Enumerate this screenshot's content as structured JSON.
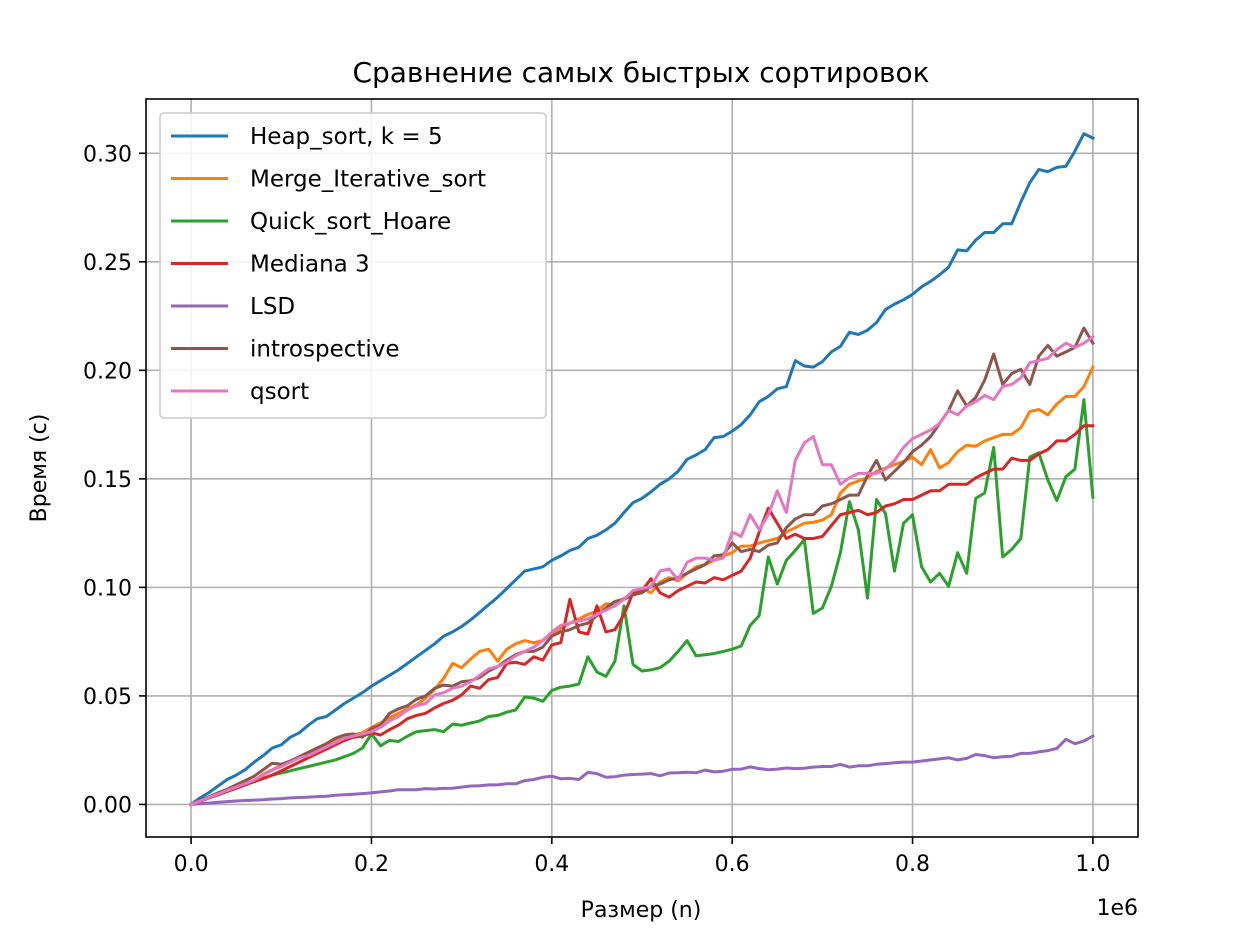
{
  "chart_data": {
    "type": "line",
    "title": "Сравнение самых быстрых сортировок",
    "xlabel": "Размер (n)",
    "ylabel": "Время (с)",
    "x_offset_label": "1e6",
    "xlim": [
      -0.05,
      1.05
    ],
    "ylim": [
      -0.015,
      0.325
    ],
    "x_ticks": [
      0.0,
      0.2,
      0.4,
      0.6,
      0.8,
      1.0
    ],
    "x_tick_labels": [
      "0.0",
      "0.2",
      "0.4",
      "0.6",
      "0.8",
      "1.0"
    ],
    "y_ticks": [
      0.0,
      0.05,
      0.1,
      0.15,
      0.2,
      0.25,
      0.3
    ],
    "y_tick_labels": [
      "0.00",
      "0.05",
      "0.10",
      "0.15",
      "0.20",
      "0.25",
      "0.30"
    ],
    "grid": true,
    "legend_position": "upper-left",
    "x": [
      0.0,
      0.01,
      0.02,
      0.03,
      0.04,
      0.05,
      0.06,
      0.07,
      0.08,
      0.09,
      0.1,
      0.11,
      0.12,
      0.13,
      0.14,
      0.15,
      0.16,
      0.17,
      0.18,
      0.19,
      0.2,
      0.21,
      0.22,
      0.23,
      0.24,
      0.25,
      0.26,
      0.27,
      0.28,
      0.29,
      0.3,
      0.31,
      0.32,
      0.33,
      0.34,
      0.35,
      0.36,
      0.37,
      0.38,
      0.39,
      0.4,
      0.41,
      0.42,
      0.43,
      0.44,
      0.45,
      0.46,
      0.47,
      0.48,
      0.49,
      0.5,
      0.51,
      0.52,
      0.53,
      0.54,
      0.55,
      0.56,
      0.57,
      0.58,
      0.59,
      0.6,
      0.61,
      0.62,
      0.63,
      0.64,
      0.65,
      0.66,
      0.67,
      0.68,
      0.69,
      0.7,
      0.71,
      0.72,
      0.73,
      0.74,
      0.75,
      0.76,
      0.77,
      0.78,
      0.79,
      0.8,
      0.81,
      0.82,
      0.83,
      0.84,
      0.85,
      0.86,
      0.87,
      0.88,
      0.89,
      0.9,
      0.91,
      0.92,
      0.93,
      0.94,
      0.95,
      0.96,
      0.97,
      0.98,
      0.99,
      1.0
    ],
    "series": [
      {
        "name": "Heap_sort, k = 5",
        "color": "#1f77b4",
        "values": [
          0.0,
          0.003,
          0.0055,
          0.0085,
          0.0115,
          0.0135,
          0.016,
          0.0195,
          0.0225,
          0.026,
          0.0275,
          0.031,
          0.033,
          0.0365,
          0.0395,
          0.0405,
          0.0435,
          0.0465,
          0.049,
          0.0515,
          0.0545,
          0.057,
          0.0595,
          0.062,
          0.065,
          0.068,
          0.071,
          0.074,
          0.0775,
          0.0795,
          0.082,
          0.085,
          0.0885,
          0.092,
          0.0955,
          0.0995,
          0.1035,
          0.1075,
          0.1085,
          0.1095,
          0.1125,
          0.1145,
          0.117,
          0.1185,
          0.1225,
          0.124,
          0.1265,
          0.1295,
          0.1345,
          0.139,
          0.141,
          0.144,
          0.1475,
          0.15,
          0.1535,
          0.159,
          0.161,
          0.1635,
          0.169,
          0.1695,
          0.172,
          0.175,
          0.1795,
          0.1855,
          0.188,
          0.1915,
          0.1925,
          0.2045,
          0.202,
          0.2015,
          0.204,
          0.2085,
          0.211,
          0.2175,
          0.2165,
          0.2185,
          0.222,
          0.228,
          0.2305,
          0.2325,
          0.235,
          0.2385,
          0.241,
          0.244,
          0.2475,
          0.2555,
          0.255,
          0.26,
          0.2635,
          0.2635,
          0.2675,
          0.2675,
          0.2775,
          0.2865,
          0.2925,
          0.2915,
          0.2935,
          0.294,
          0.301,
          0.309,
          0.307
        ]
      },
      {
        "name": "Merge_Iterative_sort",
        "color": "#ff7f0e",
        "values": [
          0.0,
          0.0015,
          0.003,
          0.0045,
          0.006,
          0.0075,
          0.009,
          0.011,
          0.014,
          0.016,
          0.018,
          0.02,
          0.022,
          0.024,
          0.026,
          0.028,
          0.03,
          0.031,
          0.032,
          0.033,
          0.0355,
          0.0375,
          0.04,
          0.042,
          0.044,
          0.046,
          0.049,
          0.053,
          0.058,
          0.065,
          0.063,
          0.067,
          0.0705,
          0.0715,
          0.066,
          0.0715,
          0.074,
          0.0755,
          0.0745,
          0.0755,
          0.0785,
          0.081,
          0.0835,
          0.0855,
          0.0875,
          0.089,
          0.0925,
          0.0915,
          0.095,
          0.097,
          0.0995,
          0.0975,
          0.1025,
          0.1045,
          0.103,
          0.1065,
          0.1095,
          0.1105,
          0.1125,
          0.1145,
          0.116,
          0.119,
          0.119,
          0.1205,
          0.1215,
          0.1225,
          0.1255,
          0.1275,
          0.1295,
          0.13,
          0.131,
          0.1335,
          0.1435,
          0.1475,
          0.149,
          0.1505,
          0.1535,
          0.155,
          0.1565,
          0.158,
          0.16,
          0.1565,
          0.1635,
          0.155,
          0.1575,
          0.1625,
          0.1655,
          0.165,
          0.1675,
          0.169,
          0.1705,
          0.1705,
          0.1735,
          0.181,
          0.182,
          0.1795,
          0.1845,
          0.188,
          0.188,
          0.1925,
          0.2015
        ]
      },
      {
        "name": "Quick_sort_Hoare",
        "color": "#2ca02c",
        "values": [
          0.0,
          0.0015,
          0.003,
          0.0045,
          0.006,
          0.0075,
          0.009,
          0.0105,
          0.012,
          0.0135,
          0.0145,
          0.0155,
          0.0165,
          0.0175,
          0.0185,
          0.0195,
          0.0205,
          0.022,
          0.0235,
          0.026,
          0.0325,
          0.027,
          0.0295,
          0.029,
          0.0315,
          0.0335,
          0.034,
          0.0345,
          0.0335,
          0.037,
          0.0365,
          0.0375,
          0.0385,
          0.0405,
          0.041,
          0.0425,
          0.0435,
          0.0495,
          0.049,
          0.0475,
          0.0525,
          0.054,
          0.0545,
          0.0555,
          0.068,
          0.061,
          0.059,
          0.066,
          0.0915,
          0.0645,
          0.0615,
          0.062,
          0.063,
          0.066,
          0.0705,
          0.0755,
          0.0685,
          0.069,
          0.0695,
          0.0705,
          0.0715,
          0.073,
          0.0825,
          0.087,
          0.114,
          0.1015,
          0.1125,
          0.117,
          0.122,
          0.088,
          0.0905,
          0.1005,
          0.116,
          0.1395,
          0.1265,
          0.095,
          0.1405,
          0.134,
          0.1075,
          0.1295,
          0.1335,
          0.1095,
          0.1025,
          0.1065,
          0.1005,
          0.116,
          0.1065,
          0.141,
          0.1435,
          0.1645,
          0.114,
          0.1175,
          0.1225,
          0.16,
          0.162,
          0.1495,
          0.14,
          0.151,
          0.1545,
          0.1865,
          0.1415
        ]
      },
      {
        "name": "Mediana 3",
        "color": "#d62728",
        "values": [
          0.0,
          0.0015,
          0.003,
          0.0045,
          0.006,
          0.0075,
          0.009,
          0.0105,
          0.012,
          0.0135,
          0.0155,
          0.0175,
          0.0195,
          0.0215,
          0.0235,
          0.0255,
          0.0275,
          0.0295,
          0.031,
          0.0315,
          0.033,
          0.032,
          0.0345,
          0.0365,
          0.0395,
          0.041,
          0.042,
          0.0445,
          0.0465,
          0.048,
          0.0505,
          0.0545,
          0.0535,
          0.0575,
          0.0585,
          0.065,
          0.0655,
          0.0645,
          0.068,
          0.0665,
          0.0735,
          0.0745,
          0.0945,
          0.0795,
          0.0785,
          0.0915,
          0.0795,
          0.0805,
          0.0875,
          0.0975,
          0.0985,
          0.104,
          0.0975,
          0.0955,
          0.0985,
          0.1005,
          0.1025,
          0.102,
          0.1045,
          0.1035,
          0.1055,
          0.1075,
          0.1135,
          0.1255,
          0.1365,
          0.1295,
          0.1225,
          0.1245,
          0.1225,
          0.1225,
          0.1235,
          0.1285,
          0.1335,
          0.1345,
          0.1355,
          0.1335,
          0.1345,
          0.1375,
          0.1385,
          0.1405,
          0.1405,
          0.1425,
          0.1445,
          0.1445,
          0.1475,
          0.1475,
          0.1475,
          0.1505,
          0.1525,
          0.1545,
          0.1545,
          0.1595,
          0.1585,
          0.1585,
          0.1615,
          0.1635,
          0.1675,
          0.1675,
          0.1705,
          0.1745,
          0.1745
        ]
      },
      {
        "name": "LSD",
        "color": "#9467bd",
        "values": [
          0.0,
          0.0003,
          0.0006,
          0.001,
          0.0013,
          0.0016,
          0.0018,
          0.002,
          0.0022,
          0.0025,
          0.0027,
          0.003,
          0.0032,
          0.0034,
          0.0036,
          0.0038,
          0.0042,
          0.0045,
          0.0047,
          0.005,
          0.0053,
          0.0058,
          0.0062,
          0.0068,
          0.0068,
          0.0068,
          0.0073,
          0.0071,
          0.0074,
          0.0075,
          0.008,
          0.0085,
          0.0086,
          0.009,
          0.009,
          0.0095,
          0.0095,
          0.011,
          0.0115,
          0.0125,
          0.013,
          0.0118,
          0.012,
          0.0115,
          0.0148,
          0.0142,
          0.0125,
          0.0128,
          0.0135,
          0.0138,
          0.014,
          0.0142,
          0.0132,
          0.0145,
          0.0146,
          0.0148,
          0.0146,
          0.0158,
          0.015,
          0.0153,
          0.0162,
          0.0163,
          0.0173,
          0.0165,
          0.016,
          0.0163,
          0.0168,
          0.0165,
          0.0167,
          0.0172,
          0.0175,
          0.0175,
          0.0185,
          0.0172,
          0.0178,
          0.0178,
          0.0185,
          0.0188,
          0.0192,
          0.0195,
          0.0195,
          0.02,
          0.0205,
          0.021,
          0.0215,
          0.0205,
          0.0212,
          0.023,
          0.0225,
          0.0215,
          0.022,
          0.0222,
          0.0235,
          0.0235,
          0.0242,
          0.0248,
          0.0258,
          0.03,
          0.028,
          0.0292,
          0.0315
        ]
      },
      {
        "name": "introspective",
        "color": "#8c564b",
        "values": [
          0.0,
          0.0018,
          0.0035,
          0.0053,
          0.007,
          0.009,
          0.011,
          0.013,
          0.016,
          0.019,
          0.0185,
          0.02,
          0.022,
          0.024,
          0.026,
          0.028,
          0.0305,
          0.032,
          0.0325,
          0.031,
          0.035,
          0.0365,
          0.042,
          0.044,
          0.0455,
          0.0485,
          0.05,
          0.0535,
          0.055,
          0.0545,
          0.0565,
          0.057,
          0.0585,
          0.0615,
          0.0635,
          0.0665,
          0.069,
          0.0705,
          0.0705,
          0.0725,
          0.0775,
          0.0795,
          0.0805,
          0.0825,
          0.0835,
          0.087,
          0.0905,
          0.0935,
          0.0945,
          0.0965,
          0.0975,
          0.1005,
          0.1015,
          0.1035,
          0.1045,
          0.1065,
          0.1085,
          0.1105,
          0.1145,
          0.115,
          0.1205,
          0.1165,
          0.1175,
          0.1165,
          0.1195,
          0.1205,
          0.1275,
          0.1315,
          0.1335,
          0.1335,
          0.1375,
          0.1385,
          0.1405,
          0.1425,
          0.1425,
          0.1515,
          0.1585,
          0.1495,
          0.1535,
          0.1575,
          0.1625,
          0.1655,
          0.1695,
          0.1755,
          0.1815,
          0.1905,
          0.1835,
          0.1875,
          0.1955,
          0.2075,
          0.1935,
          0.1985,
          0.2005,
          0.1935,
          0.2065,
          0.2115,
          0.2065,
          0.2085,
          0.2105,
          0.2195,
          0.2125
        ]
      },
      {
        "name": "qsort",
        "color": "#e377c2",
        "values": [
          0.0,
          0.0016,
          0.0032,
          0.0048,
          0.0064,
          0.008,
          0.0096,
          0.0112,
          0.0135,
          0.0158,
          0.0175,
          0.0195,
          0.0215,
          0.0225,
          0.0245,
          0.0265,
          0.0285,
          0.0305,
          0.0315,
          0.0325,
          0.0335,
          0.0355,
          0.0385,
          0.0405,
          0.0435,
          0.0455,
          0.0465,
          0.0505,
          0.0515,
          0.0535,
          0.0545,
          0.0565,
          0.0595,
          0.0625,
          0.0635,
          0.0655,
          0.0685,
          0.0705,
          0.0725,
          0.0755,
          0.0795,
          0.0825,
          0.0835,
          0.0845,
          0.0855,
          0.0875,
          0.0895,
          0.0915,
          0.0945,
          0.0985,
          0.0995,
          0.1005,
          0.1075,
          0.1085,
          0.1035,
          0.1115,
          0.1135,
          0.1135,
          0.1125,
          0.1135,
          0.1255,
          0.1235,
          0.1335,
          0.1265,
          0.1335,
          0.1445,
          0.1345,
          0.1585,
          0.1665,
          0.1695,
          0.1565,
          0.1565,
          0.1475,
          0.1505,
          0.1525,
          0.1525,
          0.1525,
          0.1545,
          0.1585,
          0.1645,
          0.1685,
          0.1705,
          0.1725,
          0.1755,
          0.1815,
          0.1795,
          0.1835,
          0.1855,
          0.1885,
          0.1865,
          0.1925,
          0.1935,
          0.1965,
          0.2035,
          0.2045,
          0.2055,
          0.2095,
          0.2125,
          0.2105,
          0.2125,
          0.2155
        ]
      }
    ]
  }
}
